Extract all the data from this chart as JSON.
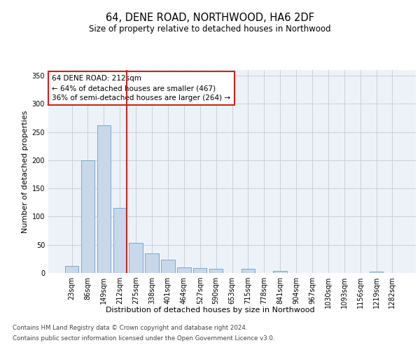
{
  "title": "64, DENE ROAD, NORTHWOOD, HA6 2DF",
  "subtitle": "Size of property relative to detached houses in Northwood",
  "xlabel": "Distribution of detached houses by size in Northwood",
  "ylabel": "Number of detached properties",
  "bin_labels": [
    "23sqm",
    "86sqm",
    "149sqm",
    "212sqm",
    "275sqm",
    "338sqm",
    "401sqm",
    "464sqm",
    "527sqm",
    "590sqm",
    "653sqm",
    "715sqm",
    "778sqm",
    "841sqm",
    "904sqm",
    "967sqm",
    "1030sqm",
    "1093sqm",
    "1156sqm",
    "1219sqm",
    "1282sqm"
  ],
  "bar_heights": [
    12,
    200,
    262,
    116,
    53,
    35,
    24,
    10,
    9,
    7,
    0,
    8,
    0,
    4,
    0,
    0,
    0,
    0,
    0,
    3,
    0
  ],
  "bar_color": "#c8d8ea",
  "bar_edge_color": "#7aaac8",
  "highlight_line_color": "#cc2222",
  "annotation_text": "64 DENE ROAD: 212sqm\n← 64% of detached houses are smaller (467)\n36% of semi-detached houses are larger (264) →",
  "annotation_box_edge": "#cc2222",
  "ylim": [
    0,
    360
  ],
  "yticks": [
    0,
    50,
    100,
    150,
    200,
    250,
    300,
    350
  ],
  "footer_line1": "Contains HM Land Registry data © Crown copyright and database right 2024.",
  "footer_line2": "Contains public sector information licensed under the Open Government Licence v3.0."
}
